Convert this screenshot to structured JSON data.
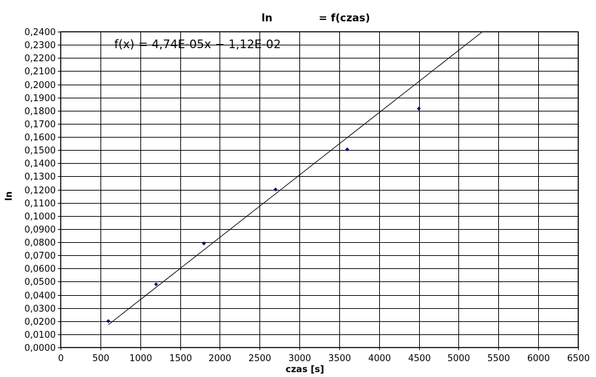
{
  "chart_data": {
    "type": "scatter",
    "title_left": "ln",
    "title_right": "= f(czas)",
    "xlabel": "czas [s]",
    "ylabel": "ln",
    "xlim": [
      0,
      6500
    ],
    "ylim": [
      0,
      0.24
    ],
    "x_ticks": [
      "0",
      "500",
      "1000",
      "1500",
      "2000",
      "2500",
      "3000",
      "3500",
      "4000",
      "4500",
      "5000",
      "5500",
      "6000",
      "6500"
    ],
    "y_ticks": [
      "0,0000",
      "0,0100",
      "0,0200",
      "0,0300",
      "0,0400",
      "0,0500",
      "0,0600",
      "0,0700",
      "0,0800",
      "0,0900",
      "0,1000",
      "0,1100",
      "0,1200",
      "0,1300",
      "0,1400",
      "0,1500",
      "0,1600",
      "0,1700",
      "0,1800",
      "0,1900",
      "0,2000",
      "0,2100",
      "0,2200",
      "0,2300",
      "0,2400"
    ],
    "grid": true,
    "points": [
      {
        "x": 600,
        "y": 0.02
      },
      {
        "x": 1200,
        "y": 0.048
      },
      {
        "x": 1800,
        "y": 0.079
      },
      {
        "x": 2700,
        "y": 0.12
      },
      {
        "x": 3600,
        "y": 0.1505
      },
      {
        "x": 4500,
        "y": 0.1815
      }
    ],
    "trendline": {
      "equation": "f(x) = 4,74E-05x − 1,12E-02",
      "slope": 4.74e-05,
      "intercept": -0.0112,
      "x_range": [
        600,
        5300
      ]
    },
    "colors": {
      "points": "#000080",
      "grid": "#000000",
      "trendline": "#000000"
    }
  }
}
